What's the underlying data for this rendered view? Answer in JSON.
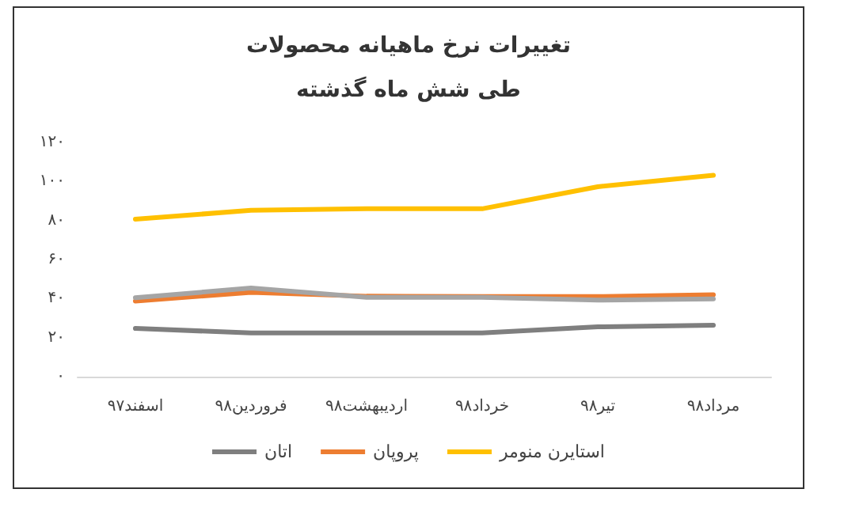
{
  "chart_data": {
    "type": "line",
    "title": "تغییرات نرخ ماهیانه محصولات",
    "subtitle": "طی شش ماه گذشته",
    "categories": [
      "اسفند۹۷",
      "فروردین۹۸",
      "اردیبهشت۹۸",
      "خرداد۹۸",
      "تیر۹۸",
      "مرداد۹۸"
    ],
    "series": [
      {
        "name": "استایرن منومر",
        "color": "#ffc000",
        "values": [
          80.7,
          85.2,
          86,
          86,
          97.3,
          103.2
        ]
      },
      {
        "name": "پروپان",
        "color": "#ed7d31",
        "values": [
          38.7,
          43.2,
          41.2,
          41,
          41,
          42
        ]
      },
      {
        "color": "#a5a5a5",
        "values": [
          40.4,
          45.4,
          40.6,
          40.6,
          39.2,
          39.8
        ]
      },
      {
        "name": "اتان",
        "color": "#7f7f7f",
        "values": [
          24.7,
          22.4,
          22.4,
          22.4,
          25.5,
          26.4
        ]
      }
    ],
    "ylim": [
      0,
      120
    ],
    "yticks": [
      {
        "value": 0,
        "label": "۰"
      },
      {
        "value": 20,
        "label": "۲۰"
      },
      {
        "value": 40,
        "label": "۴۰"
      },
      {
        "value": 60,
        "label": "۶۰"
      },
      {
        "value": 80,
        "label": "۸۰"
      },
      {
        "value": 100,
        "label": "۱۰۰"
      },
      {
        "value": 120,
        "label": "۱۲۰"
      }
    ],
    "grid": false,
    "legend": "bottom",
    "marker": "none",
    "line_style": "solid"
  }
}
